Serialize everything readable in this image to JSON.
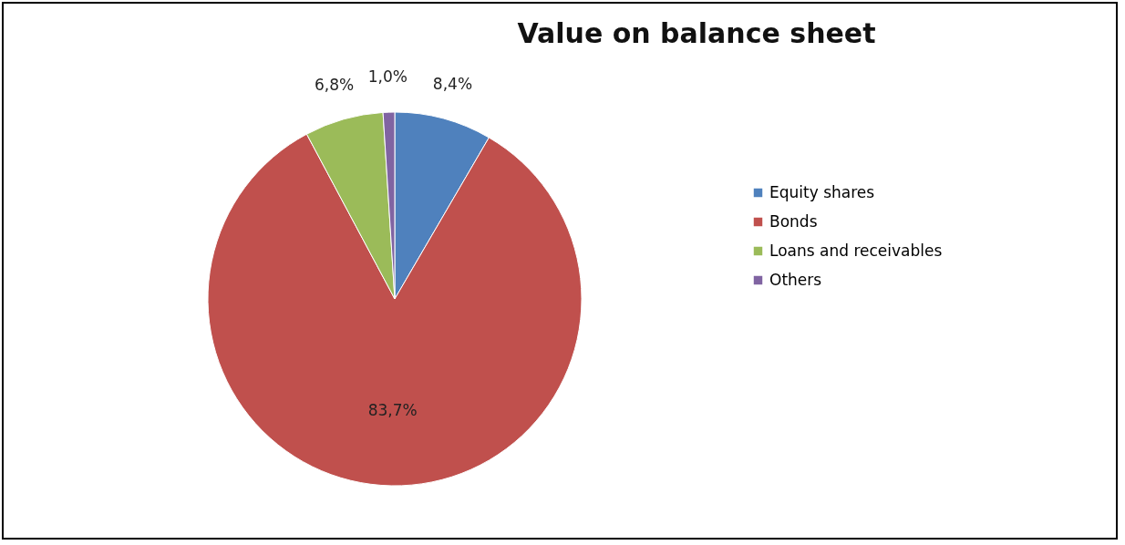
{
  "chart_data": {
    "type": "pie",
    "title": "Value on balance sheet",
    "categories": [
      "Equity shares",
      "Bonds",
      "Loans and receivables",
      "Others"
    ],
    "values": [
      8.4,
      83.7,
      6.8,
      1.0
    ],
    "colors": [
      "#4f81bd",
      "#c0504d",
      "#9bbb59",
      "#8064a2"
    ],
    "value_labels": [
      "8,4%",
      "83,7%",
      "6,8%",
      "1,0%"
    ],
    "legend": "right"
  }
}
